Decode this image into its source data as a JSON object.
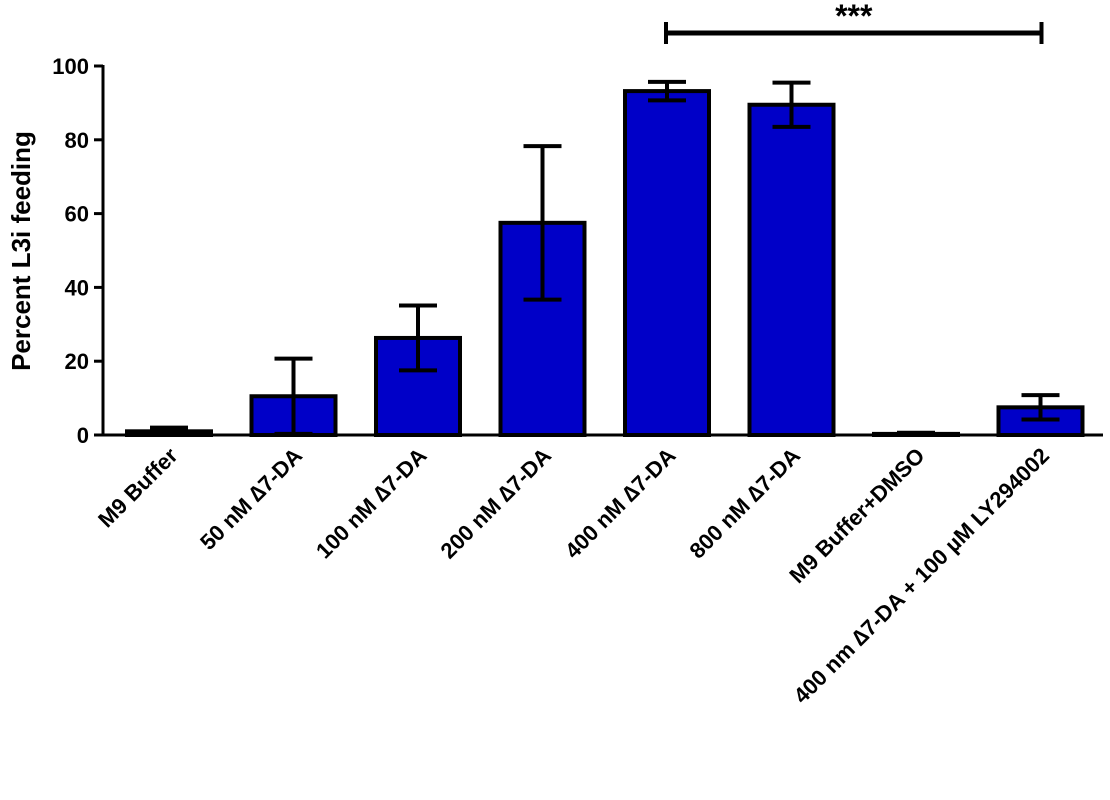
{
  "chart_data": {
    "type": "bar",
    "title": "",
    "xlabel": "",
    "ylabel": "Percent L3i feeding",
    "ylim": [
      0,
      100
    ],
    "yticks": [
      0,
      20,
      40,
      60,
      80,
      100
    ],
    "grid": false,
    "bar_color": "#0000c8",
    "categories": [
      "M9 Buffer",
      "50 nM ∆7-DA",
      "100 nM ∆7-DA",
      "200 nM ∆7-DA",
      "400 nM ∆7-DA",
      "800 nM ∆7-DA",
      "M9 Buffer+DMSO",
      "400 nm  ∆7-DA + 100 µM LY294002"
    ],
    "values": [
      1,
      10.5,
      26.3,
      57.5,
      93.2,
      89.5,
      0.3,
      7.5
    ],
    "errors": [
      1,
      10.2,
      8.8,
      20.8,
      2.5,
      6,
      0.3,
      3.3
    ],
    "significance": {
      "from": 4,
      "to": 7,
      "label": "***"
    }
  }
}
